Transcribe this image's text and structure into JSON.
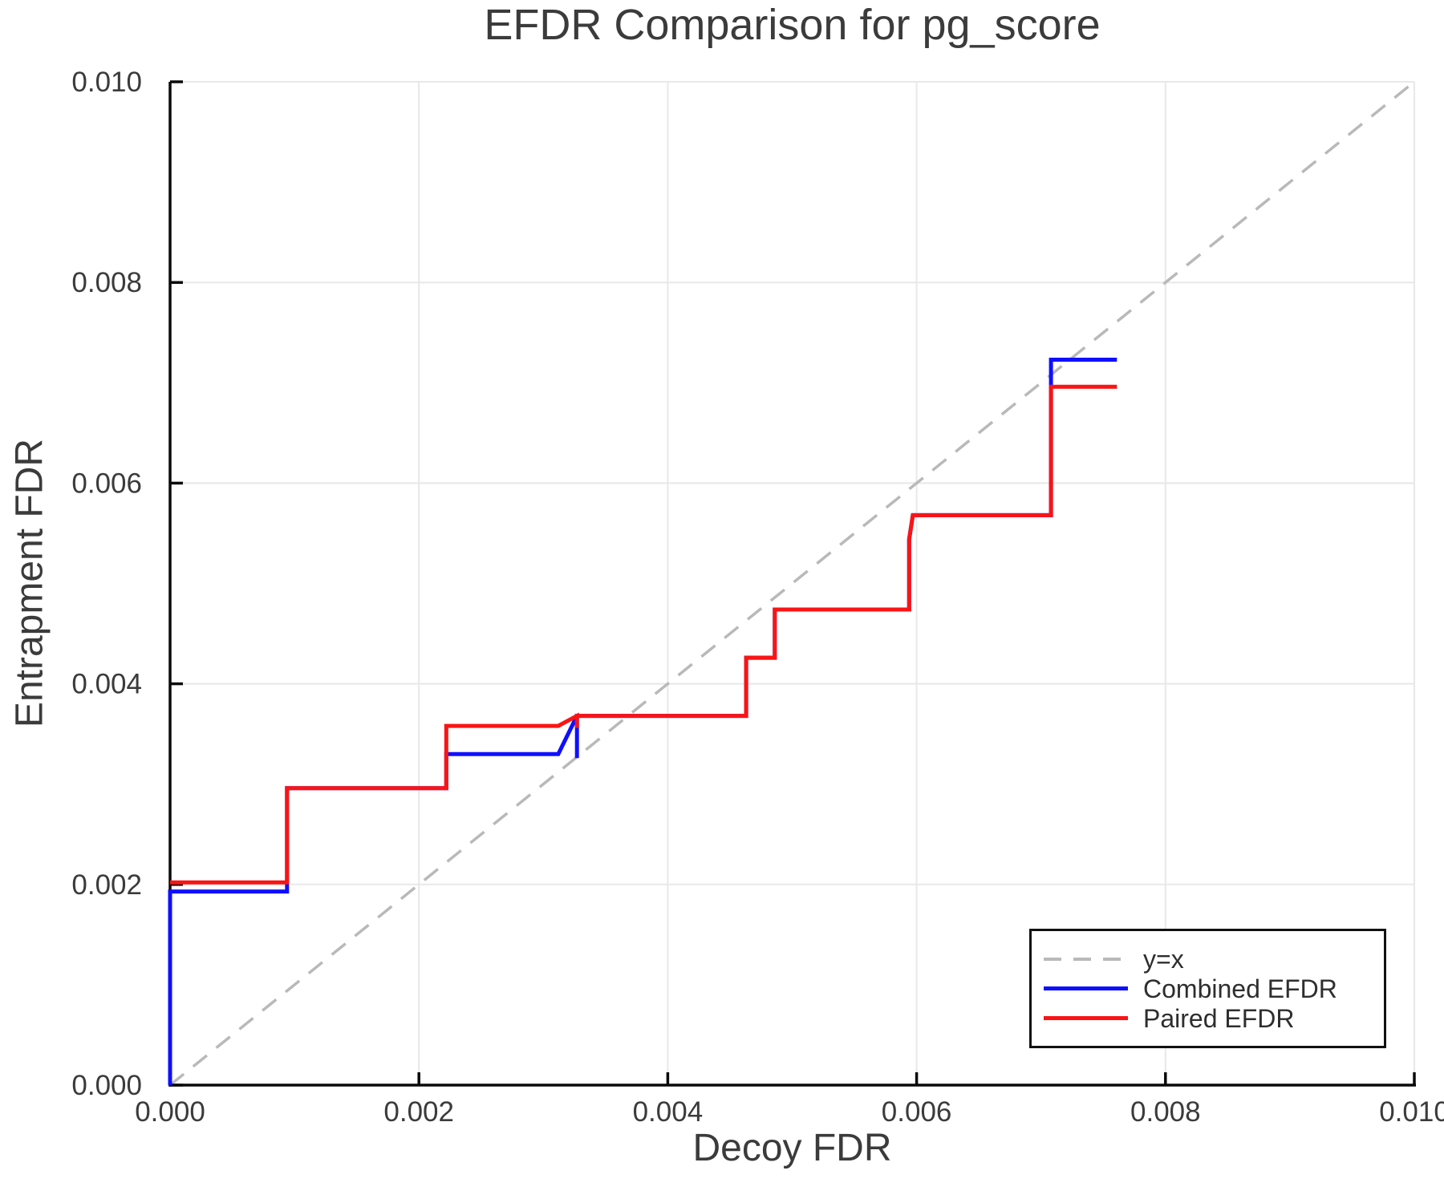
{
  "figure": {
    "background": "#ffffff"
  },
  "chart_data": {
    "type": "line",
    "title": "EFDR Comparison for pg_score",
    "xlabel": "Decoy FDR",
    "ylabel": "Entrapment FDR",
    "xlim": [
      0.0,
      0.01
    ],
    "ylim": [
      0.0,
      0.01
    ],
    "x_tick_values": [
      0.0,
      0.002,
      0.004,
      0.006,
      0.008,
      0.01
    ],
    "x_tick_labels": [
      "0.000",
      "0.002",
      "0.004",
      "0.006",
      "0.008",
      "0.010"
    ],
    "y_tick_values": [
      0.0,
      0.002,
      0.004,
      0.006,
      0.008,
      0.01
    ],
    "y_tick_labels": [
      "0.000",
      "0.002",
      "0.004",
      "0.006",
      "0.008",
      "0.010"
    ],
    "grid": true,
    "legend_position": "bottom-right",
    "identity_line": {
      "label": "y=x",
      "style": "dashed",
      "color": "#b9b9b9",
      "from": [
        0.0,
        0.0
      ],
      "to": [
        0.01,
        0.01
      ]
    },
    "series": [
      {
        "name": "Combined EFDR",
        "color": "#0f0fff",
        "points": [
          [
            0.0,
            0.0
          ],
          [
            0.0,
            0.00193
          ],
          [
            0.00094,
            0.00193
          ],
          [
            0.00094,
            0.00296
          ],
          [
            0.00222,
            0.00296
          ],
          [
            0.00222,
            0.0033
          ],
          [
            0.00312,
            0.0033
          ],
          [
            0.00327,
            0.00368
          ],
          [
            0.00327,
            0.00326
          ],
          [
            0.00327,
            0.00368
          ],
          [
            0.00463,
            0.00368
          ],
          [
            0.00463,
            0.00426
          ],
          [
            0.00486,
            0.00426
          ],
          [
            0.00486,
            0.00474
          ],
          [
            0.00594,
            0.00474
          ],
          [
            0.00594,
            0.00544
          ],
          [
            0.00597,
            0.00568
          ],
          [
            0.00708,
            0.00568
          ],
          [
            0.00708,
            0.00723
          ],
          [
            0.00761,
            0.00723
          ]
        ]
      },
      {
        "name": "Paired EFDR",
        "color": "#fa1414",
        "points": [
          [
            0.0,
            0.00202
          ],
          [
            0.00094,
            0.00202
          ],
          [
            0.00094,
            0.00296
          ],
          [
            0.00222,
            0.00296
          ],
          [
            0.00222,
            0.00358
          ],
          [
            0.00312,
            0.00358
          ],
          [
            0.00327,
            0.00368
          ],
          [
            0.00327,
            0.00356
          ],
          [
            0.00327,
            0.00368
          ],
          [
            0.00463,
            0.00368
          ],
          [
            0.00463,
            0.00426
          ],
          [
            0.00486,
            0.00426
          ],
          [
            0.00486,
            0.00474
          ],
          [
            0.00594,
            0.00474
          ],
          [
            0.00594,
            0.00544
          ],
          [
            0.00597,
            0.00568
          ],
          [
            0.00708,
            0.00568
          ],
          [
            0.00708,
            0.00696
          ],
          [
            0.00761,
            0.00696
          ]
        ]
      }
    ],
    "style": {
      "grid_color": "#e8e8e8",
      "axis_color": "#0a0a0a",
      "text_color": "#3b3b3b",
      "line_width": 5
    }
  },
  "legend": {
    "items": [
      {
        "label": "y=x",
        "series": "identity"
      },
      {
        "label": "Combined EFDR",
        "series": "combined"
      },
      {
        "label": "Paired EFDR",
        "series": "paired"
      }
    ]
  }
}
